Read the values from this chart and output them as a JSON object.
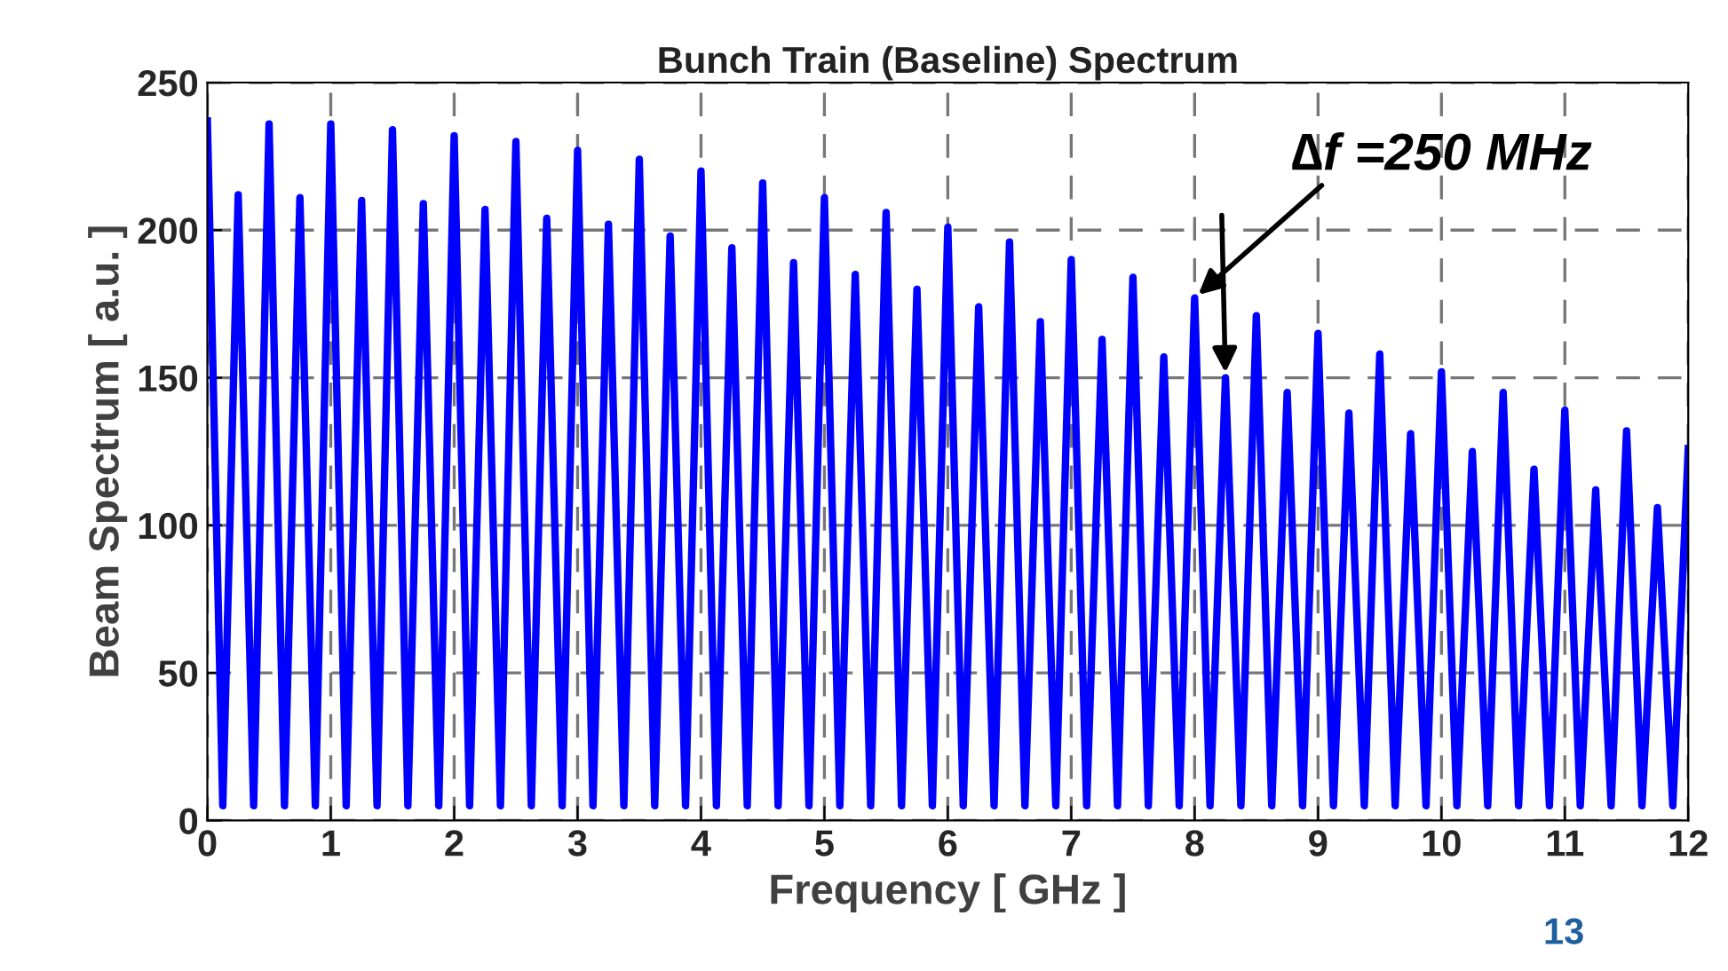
{
  "chart_data": {
    "type": "line",
    "title": "Bunch Train (Baseline) Spectrum",
    "xlabel": "Frequency [ GHz ]",
    "ylabel": "Beam Spectrum [ a.u. ]",
    "x": [
      0,
      0.125,
      0.25,
      0.375,
      0.5,
      0.625,
      0.75,
      0.875,
      1,
      1.125,
      1.25,
      1.375,
      1.5,
      1.625,
      1.75,
      1.875,
      2,
      2.125,
      2.25,
      2.375,
      2.5,
      2.625,
      2.75,
      2.875,
      3,
      3.125,
      3.25,
      3.375,
      3.5,
      3.625,
      3.75,
      3.875,
      4,
      4.125,
      4.25,
      4.375,
      4.5,
      4.625,
      4.75,
      4.875,
      5,
      5.125,
      5.25,
      5.375,
      5.5,
      5.625,
      5.75,
      5.875,
      6,
      6.125,
      6.25,
      6.375,
      6.5,
      6.625,
      6.75,
      6.875,
      7,
      7.125,
      7.25,
      7.375,
      7.5,
      7.625,
      7.75,
      7.875,
      8,
      8.125,
      8.25,
      8.375,
      8.5,
      8.625,
      8.75,
      8.875,
      9,
      9.125,
      9.25,
      9.375,
      9.5,
      9.625,
      9.75,
      9.875,
      10,
      10.125,
      10.25,
      10.375,
      10.5,
      10.625,
      10.75,
      10.875,
      11,
      11.125,
      11.25,
      11.375,
      11.5,
      11.625,
      11.75,
      11.875,
      12
    ],
    "series": [
      {
        "color": "#0000ff",
        "values": [
          237,
          5,
          212,
          5,
          236,
          5,
          211,
          5,
          236,
          5,
          210,
          5,
          234,
          5,
          209,
          5,
          232,
          5,
          207,
          5,
          230,
          5,
          204,
          5,
          227,
          5,
          202,
          5,
          224,
          5,
          198,
          5,
          220,
          5,
          194,
          5,
          216,
          5,
          189,
          5,
          211,
          5,
          185,
          5,
          206,
          5,
          180,
          5,
          201,
          5,
          174,
          5,
          196,
          5,
          169,
          5,
          190,
          5,
          163,
          5,
          184,
          5,
          157,
          5,
          177,
          5,
          150,
          5,
          171,
          5,
          145,
          5,
          165,
          5,
          138,
          5,
          158,
          5,
          131,
          5,
          152,
          5,
          125,
          5,
          145,
          5,
          119,
          5,
          139,
          5,
          112,
          5,
          132,
          5,
          106,
          5,
          126
        ]
      }
    ],
    "xlim": [
      0,
      12
    ],
    "ylim": [
      0,
      250
    ],
    "xticks": [
      0,
      1,
      2,
      3,
      4,
      5,
      6,
      7,
      8,
      9,
      10,
      11,
      12
    ],
    "yticks": [
      0,
      50,
      100,
      150,
      200,
      250
    ],
    "grid": true,
    "line_style": "solid",
    "marker": "none",
    "annotations": [
      {
        "text": "∆f =250 MHz",
        "x": 8,
        "y": 177
      },
      "13"
    ]
  }
}
